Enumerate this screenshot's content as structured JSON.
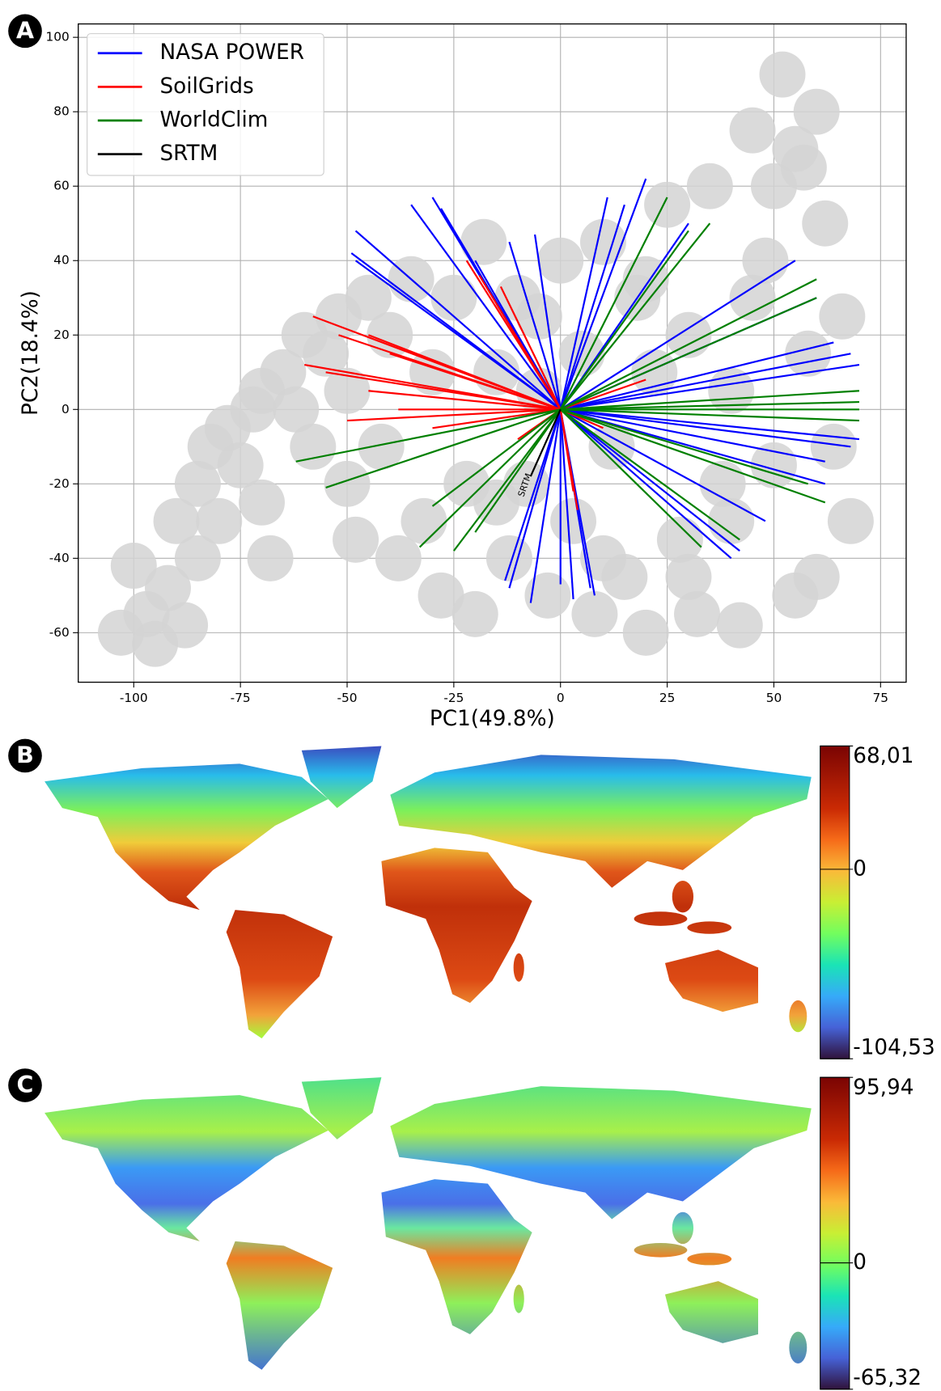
{
  "chart_data": [
    {
      "type": "biplot",
      "panel_label": "A",
      "xlabel": "PC1(49.8%)",
      "ylabel": "PC2(18.4%)",
      "xlim": [
        -113,
        81
      ],
      "ylim": [
        -73.3,
        103.6
      ],
      "xticks": [
        -100,
        -75,
        -50,
        -25,
        0,
        25,
        50,
        75
      ],
      "yticks": [
        -60,
        -40,
        -20,
        0,
        20,
        40,
        60,
        80,
        100
      ],
      "grid": true,
      "legend": "upper left",
      "points": {
        "color": "#d3d3d3",
        "x": [
          -103,
          -100,
          -97,
          -95,
          -92,
          -90,
          -88,
          -85,
          -85,
          -82,
          -80,
          -78,
          -75,
          -72,
          -70,
          -70,
          -68,
          -65,
          -62,
          -60,
          -58,
          -55,
          -52,
          -50,
          -50,
          -48,
          -45,
          -42,
          -40,
          -38,
          -35,
          -32,
          -30,
          -28,
          -25,
          -22,
          -20,
          -18,
          -15,
          -12,
          -10,
          -8,
          -5,
          -3,
          0,
          3,
          5,
          8,
          10,
          12,
          15,
          18,
          20,
          22,
          25,
          28,
          30,
          32,
          35,
          38,
          40,
          42,
          45,
          48,
          50,
          52,
          55,
          57,
          58,
          60,
          62,
          64,
          66,
          68,
          60,
          55,
          50,
          45,
          40,
          -15,
          -5,
          10,
          20,
          30
        ],
        "y": [
          -60,
          -42,
          -55,
          -63,
          -48,
          -30,
          -58,
          -20,
          -40,
          -10,
          -30,
          -5,
          -15,
          0,
          5,
          -25,
          -40,
          10,
          0,
          20,
          -10,
          15,
          25,
          -20,
          5,
          -35,
          30,
          -10,
          20,
          -40,
          35,
          -30,
          10,
          -50,
          30,
          -20,
          -55,
          45,
          10,
          -40,
          30,
          -20,
          5,
          -50,
          40,
          -30,
          15,
          -55,
          45,
          -10,
          -45,
          30,
          -60,
          10,
          55,
          -35,
          20,
          -55,
          60,
          -20,
          5,
          -58,
          75,
          40,
          -15,
          90,
          -50,
          65,
          15,
          -45,
          50,
          -10,
          25,
          -30,
          80,
          70,
          60,
          30,
          -30,
          -25,
          25,
          -40,
          35,
          -45
        ]
      },
      "series": [
        {
          "name": "NASA POWER",
          "color": "#0000ff",
          "x": [
            -48,
            -49,
            -48,
            -30,
            -35,
            -28,
            -20,
            -12,
            -6,
            20,
            11,
            -12,
            -13,
            -7,
            0,
            3,
            8,
            7,
            55,
            60,
            64,
            68,
            70,
            70,
            68,
            62,
            42,
            40,
            62,
            48,
            15,
            30
          ],
          "y": [
            48,
            42,
            40,
            57,
            55,
            54,
            40,
            45,
            47,
            62,
            57,
            -48,
            -46,
            -52,
            -47,
            -51,
            -50,
            -48,
            40,
            30,
            18,
            15,
            12,
            -8,
            -10,
            -20,
            -38,
            -40,
            -14,
            -30,
            55,
            50
          ]
        },
        {
          "name": "SoilGrids",
          "color": "#ff0000",
          "x": [
            -58,
            -52,
            -60,
            -55,
            -45,
            -38,
            -50,
            -30,
            -22,
            -14,
            -19,
            4,
            3,
            10,
            20,
            -10,
            -45,
            -40
          ],
          "y": [
            25,
            20,
            12,
            10,
            5,
            0,
            -3,
            -5,
            40,
            33,
            36,
            -27,
            -22,
            -5,
            8,
            -8,
            20,
            15
          ]
        },
        {
          "name": "WorldClim",
          "color": "#008000",
          "x": [
            -62,
            -55,
            -30,
            -33,
            -25,
            -20,
            25,
            35,
            60,
            60,
            70,
            70,
            70,
            62,
            42,
            33,
            58,
            30,
            70
          ],
          "y": [
            -14,
            -21,
            -26,
            -37,
            -38,
            -33,
            57,
            50,
            35,
            30,
            5,
            0,
            -3,
            -25,
            -35,
            -37,
            -20,
            48,
            2
          ]
        },
        {
          "name": "SRTM",
          "color": "#000000",
          "x": [
            -7
          ],
          "y": [
            -18
          ]
        }
      ],
      "annotation": "SRTM"
    },
    {
      "type": "map",
      "panel_label": "B",
      "clim": [
        -104.53,
        68.01
      ],
      "cticks": [
        {
          "value": 68.01,
          "label": "68,01"
        },
        0,
        {
          "value": -104.53,
          "label": "-104,53"
        }
      ]
    },
    {
      "type": "map",
      "panel_label": "C",
      "clim": [
        -65.32,
        95.94
      ],
      "cticks": [
        {
          "value": 95.94,
          "label": "95,94"
        },
        0,
        {
          "value": -65.32,
          "label": "-65,32"
        }
      ]
    }
  ]
}
